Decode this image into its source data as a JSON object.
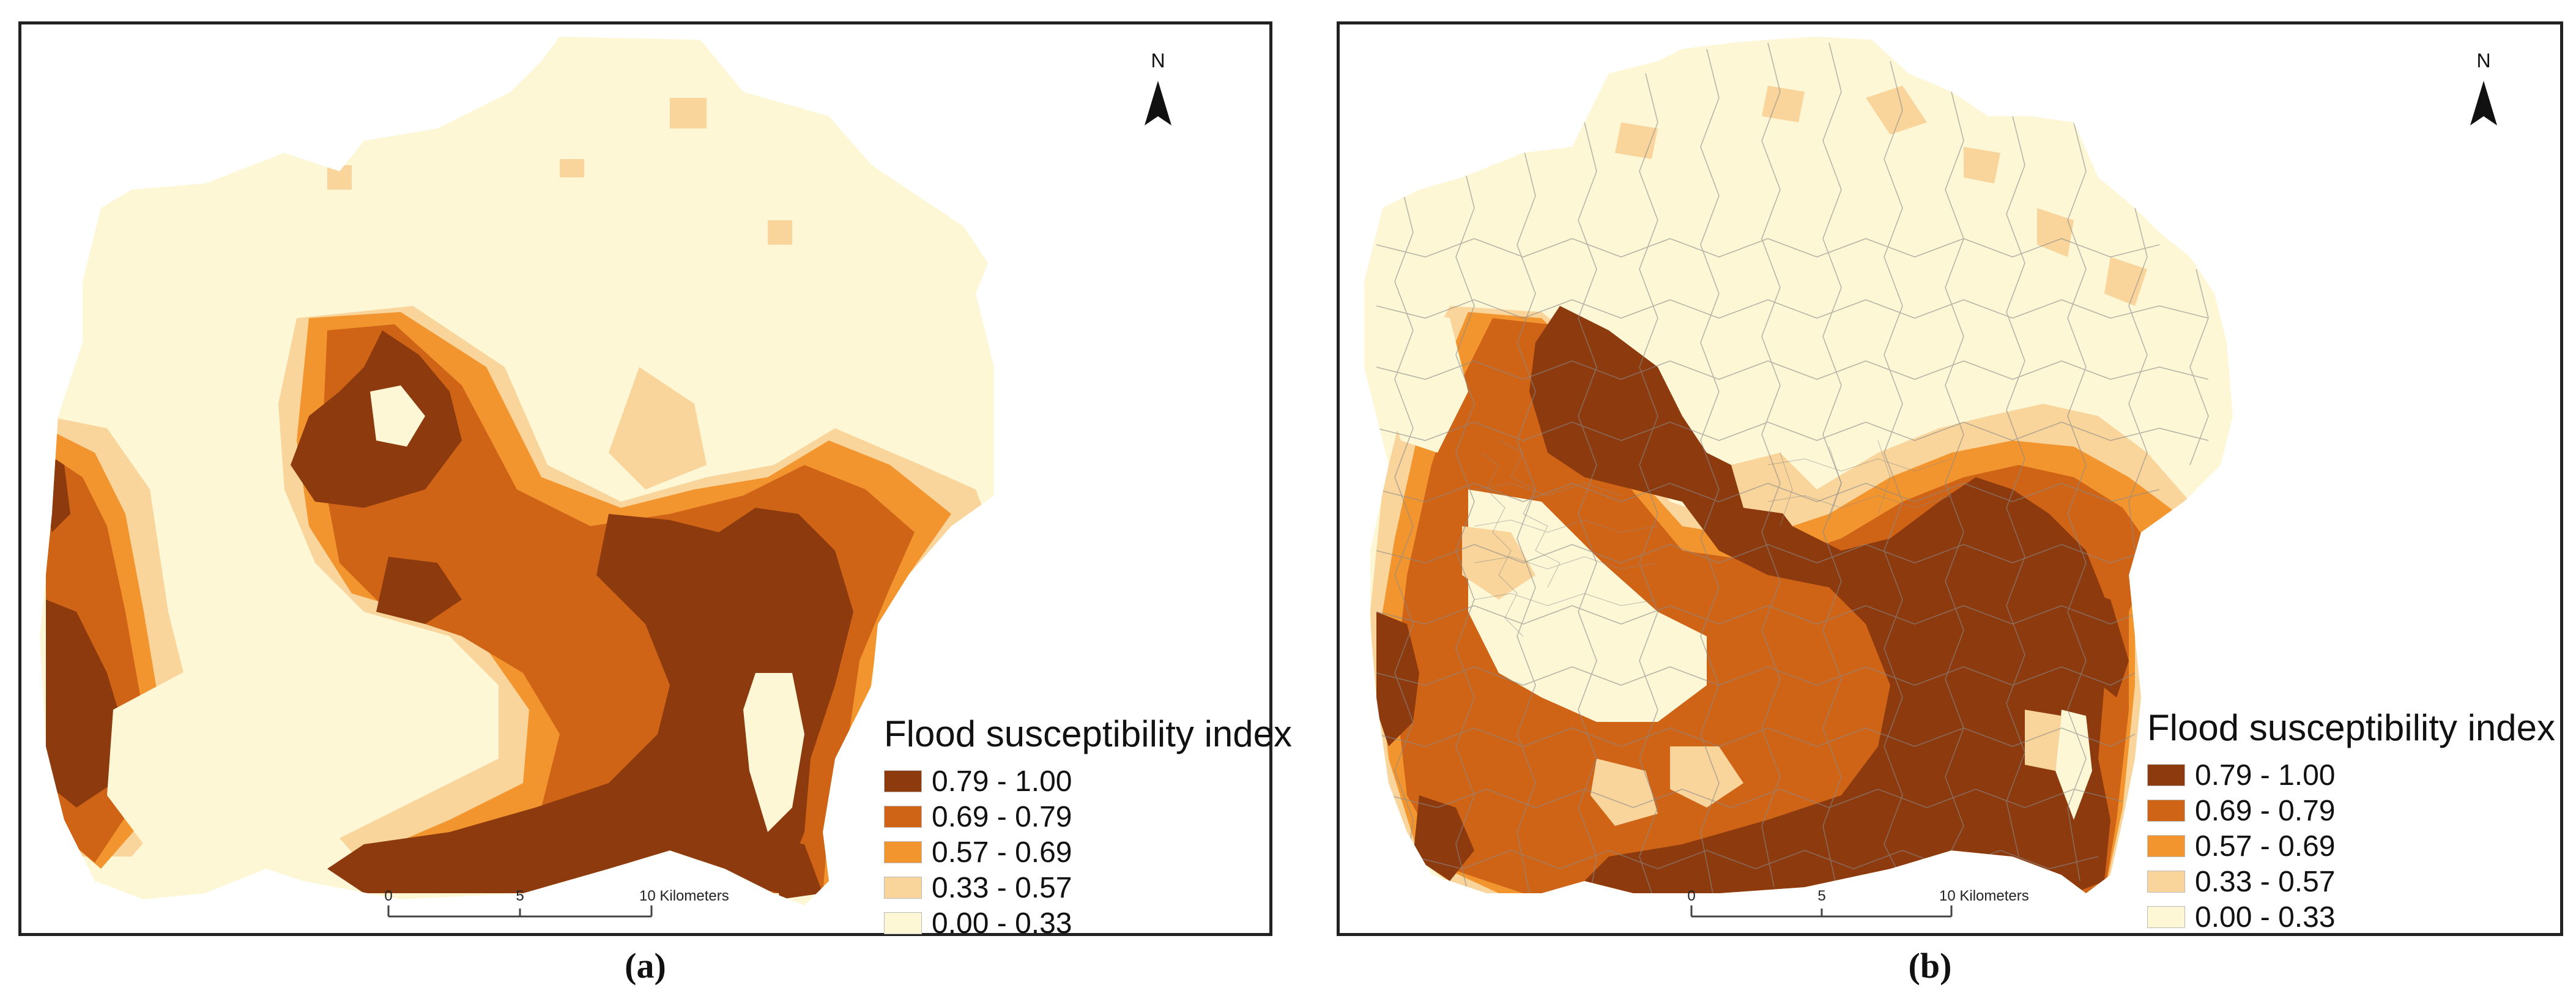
{
  "panels": [
    {
      "caption": "(a)",
      "north_label": "N",
      "legend": {
        "title": "Flood susceptibility index",
        "classes": [
          {
            "label": "0.79 - 1.00",
            "color": "#8c3a0e"
          },
          {
            "label": "0.69 - 0.79",
            "color": "#cf6417"
          },
          {
            "label": "0.57 - 0.69",
            "color": "#f2952f"
          },
          {
            "label": "0.33 - 0.57",
            "color": "#f9d49b"
          },
          {
            "label": "0.00 - 0.33",
            "color": "#fdf7d6"
          }
        ]
      },
      "scale_bar": {
        "ticks": [
          "0",
          "5",
          "10 Kilometers"
        ]
      }
    },
    {
      "caption": "(b)",
      "north_label": "N",
      "legend": {
        "title": "Flood susceptibility index",
        "classes": [
          {
            "label": "0.79 - 1.00",
            "color": "#8c3a0e"
          },
          {
            "label": "0.69 - 0.79",
            "color": "#cf6417"
          },
          {
            "label": "0.57 - 0.69",
            "color": "#f2952f"
          },
          {
            "label": "0.33 - 0.57",
            "color": "#f9d49b"
          },
          {
            "label": "0.00 - 0.33",
            "color": "#fdf7d6"
          }
        ]
      },
      "scale_bar": {
        "ticks": [
          "0",
          "5",
          "10 Kilometers"
        ]
      }
    }
  ]
}
